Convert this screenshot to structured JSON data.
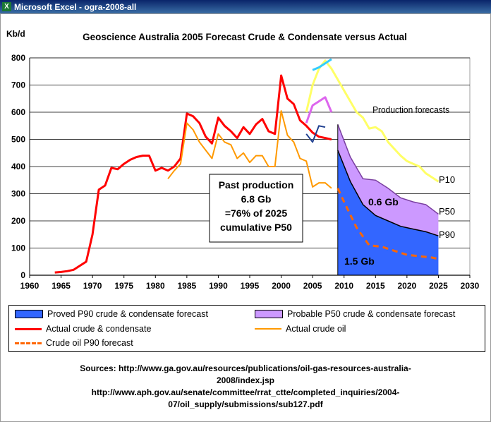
{
  "window": {
    "title": "Microsoft Excel - ogra-2008-all",
    "app_icon": "excel-icon"
  },
  "chart_data": {
    "type": "line",
    "title": "Geoscience Australia 2005 Forecast Crude & Condensate  versus Actual",
    "ylabel": "Kb/d",
    "xlabel": "",
    "xlim": [
      1960,
      2030
    ],
    "ylim": [
      0,
      800
    ],
    "x_ticks": [
      1960,
      1965,
      1970,
      1975,
      1980,
      1985,
      1990,
      1995,
      2000,
      2005,
      2010,
      2015,
      2020,
      2025,
      2030
    ],
    "y_ticks": [
      0,
      100,
      200,
      300,
      400,
      500,
      600,
      700,
      800
    ],
    "grid": "horizontal",
    "legend_placement": "bottom",
    "series": [
      {
        "name": "Actual crude & condensate",
        "color": "#ff0000",
        "x": [
          1964,
          1965,
          1966,
          1967,
          1968,
          1969,
          1970,
          1971,
          1972,
          1973,
          1974,
          1975,
          1976,
          1977,
          1978,
          1979,
          1980,
          1981,
          1982,
          1983,
          1984,
          1985,
          1986,
          1987,
          1988,
          1989,
          1990,
          1991,
          1992,
          1993,
          1994,
          1995,
          1996,
          1997,
          1998,
          1999,
          2000,
          2001,
          2002,
          2003,
          2004,
          2005,
          2006,
          2007,
          2008
        ],
        "y": [
          10,
          12,
          15,
          20,
          35,
          50,
          150,
          315,
          330,
          395,
          390,
          410,
          425,
          435,
          440,
          440,
          385,
          395,
          385,
          400,
          430,
          595,
          585,
          560,
          510,
          485,
          580,
          550,
          530,
          505,
          545,
          520,
          555,
          575,
          530,
          520,
          735,
          650,
          630,
          570,
          550,
          525,
          510,
          505,
          500
        ]
      },
      {
        "name": "Actual crude oil",
        "color": "#ff9900",
        "x": [
          1982,
          1983,
          1984,
          1985,
          1986,
          1987,
          1988,
          1989,
          1990,
          1991,
          1992,
          1993,
          1994,
          1995,
          1996,
          1997,
          1998,
          1999,
          2000,
          2001,
          2002,
          2003,
          2004,
          2005,
          2006,
          2007,
          2008
        ],
        "y": [
          355,
          385,
          410,
          560,
          535,
          490,
          460,
          430,
          520,
          490,
          480,
          430,
          450,
          415,
          440,
          440,
          400,
          400,
          605,
          515,
          490,
          430,
          420,
          325,
          340,
          340,
          320
        ]
      },
      {
        "name": "Proved P90 crude & condensate forecast",
        "color": "#3366ff",
        "type": "area",
        "x": [
          2009,
          2011,
          2013,
          2015,
          2017,
          2019,
          2021,
          2023,
          2025
        ],
        "y": [
          460,
          345,
          260,
          220,
          200,
          180,
          170,
          160,
          145
        ]
      },
      {
        "name": "Probable P50  crude & condensate forecast",
        "color": "#cc99ff",
        "type": "area",
        "x": [
          2009,
          2011,
          2013,
          2015,
          2017,
          2019,
          2021,
          2023,
          2025
        ],
        "y": [
          555,
          435,
          355,
          350,
          320,
          285,
          270,
          260,
          225
        ]
      },
      {
        "name": "Crude oil P90 forecast",
        "color": "#ff6600",
        "dashed": true,
        "x": [
          2009,
          2010,
          2012,
          2014,
          2016,
          2018,
          2020,
          2022,
          2024,
          2025
        ],
        "y": [
          320,
          270,
          175,
          110,
          105,
          90,
          75,
          70,
          65,
          60
        ]
      },
      {
        "name": "",
        "color": "#ffff66",
        "x": [
          2004,
          2005,
          2006,
          2007,
          2008,
          2009,
          2010,
          2011,
          2012,
          2013,
          2014,
          2015,
          2016,
          2017,
          2018,
          2019,
          2020,
          2021,
          2022,
          2023,
          2024,
          2025
        ],
        "y": [
          600,
          700,
          760,
          790,
          760,
          720,
          680,
          640,
          600,
          580,
          540,
          545,
          530,
          490,
          465,
          440,
          420,
          410,
          400,
          375,
          360,
          345
        ]
      },
      {
        "name": "",
        "color": "#dd66ee",
        "x": [
          2004,
          2005,
          2006,
          2007,
          2008
        ],
        "y": [
          560,
          625,
          640,
          655,
          600
        ]
      },
      {
        "name": "",
        "color": "#1f3f8f",
        "x": [
          2004,
          2005,
          2006,
          2007
        ],
        "y": [
          520,
          490,
          550,
          545
        ]
      },
      {
        "name": "",
        "color": "#33ccff",
        "x": [
          2005,
          2006,
          2007,
          2008
        ],
        "y": [
          755,
          765,
          780,
          795
        ]
      }
    ],
    "annotations": {
      "production_forecasts": "Production forecasts",
      "p10": "P10",
      "p50": "P50",
      "p90": "P90",
      "past_production": [
        "Past production",
        "6.8 Gb",
        "=76% of 2025",
        "cumulative P50"
      ],
      "gb_06": "0.6 Gb",
      "gb_15": "1.5 Gb"
    }
  },
  "legend": {
    "proved": "Proved P90 crude & condensate forecast",
    "probable": "Probable P50  crude & condensate forecast",
    "actual_cc": "Actual crude & condensate",
    "actual_oil": "Actual crude oil",
    "oil_p90": "Crude oil P90 forecast"
  },
  "sources": {
    "line1": "Sources: http://www.ga.gov.au/resources/publications/oil-gas-resources-australia-",
    "line2": "2008/index.jsp",
    "line3": "http://www.aph.gov.au/senate/committee/rrat_ctte/completed_inquiries/2004-",
    "line4": "07/oil_supply/submissions/sub127.pdf"
  }
}
